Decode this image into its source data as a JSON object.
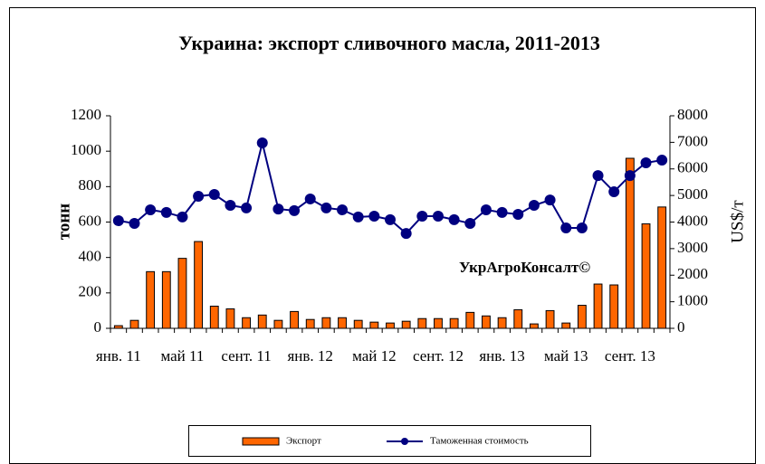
{
  "chart_data": {
    "type": "bar-line",
    "title": "Украина: экспорт сливочного масла, 2011-2013",
    "ylabel": "тонн",
    "y2label": "US$/т",
    "annotation": "УкрАгроКонсалт©",
    "categories": [
      "янв. 11",
      null,
      null,
      null,
      "май 11",
      null,
      null,
      null,
      "сент. 11",
      null,
      null,
      null,
      "янв. 12",
      null,
      null,
      null,
      "май 12",
      null,
      null,
      null,
      "сент. 12",
      null,
      null,
      null,
      "янв. 13",
      null,
      null,
      null,
      "май 13",
      null,
      null,
      null,
      "сент. 13",
      null,
      null
    ],
    "series": [
      {
        "name": "Экспорт",
        "kind": "bar",
        "color": "#ff6600",
        "values": [
          15,
          45,
          320,
          320,
          395,
          490,
          125,
          110,
          60,
          75,
          45,
          95,
          50,
          60,
          60,
          45,
          35,
          30,
          40,
          55,
          55,
          55,
          90,
          70,
          60,
          105,
          25,
          100,
          30,
          130,
          250,
          245,
          960,
          590,
          685
        ]
      },
      {
        "name": "Таможенная стоимость",
        "kind": "line",
        "color": "#000080",
        "axis": "y2",
        "values": [
          4050,
          3950,
          4460,
          4360,
          4190,
          4970,
          5040,
          4630,
          4530,
          6980,
          4490,
          4430,
          4870,
          4530,
          4460,
          4190,
          4220,
          4090,
          3570,
          4220,
          4220,
          4090,
          3950,
          4460,
          4360,
          4290,
          4630,
          4830,
          3780,
          3780,
          5750,
          5140,
          5750,
          6230,
          6330
        ]
      }
    ],
    "ylim": [
      0,
      1200
    ],
    "yticks": [
      0,
      200,
      400,
      600,
      800,
      1000,
      1200
    ],
    "y2lim": [
      0,
      8000
    ],
    "y2ticks": [
      0,
      1000,
      2000,
      3000,
      4000,
      5000,
      6000,
      7000,
      8000
    ],
    "grid": false,
    "legend": "bottom"
  }
}
